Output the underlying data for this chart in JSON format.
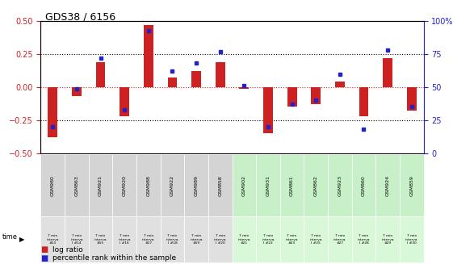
{
  "title": "GDS38 / 6156",
  "samples": [
    "GSM980",
    "GSM863",
    "GSM921",
    "GSM920",
    "GSM988",
    "GSM922",
    "GSM989",
    "GSM858",
    "GSM902",
    "GSM931",
    "GSM861",
    "GSM862",
    "GSM923",
    "GSM860",
    "GSM924",
    "GSM859"
  ],
  "intervals": [
    "#13",
    "I #14",
    "#15",
    "I #16",
    "#17",
    "I #18",
    "#19",
    "I #20",
    "#21",
    "I #22",
    "#23",
    "I #25",
    "#27",
    "I #28",
    "#29",
    "I #30"
  ],
  "log_ratio": [
    -0.38,
    -0.07,
    0.19,
    -0.22,
    0.47,
    0.07,
    0.12,
    0.19,
    -0.01,
    -0.35,
    -0.15,
    -0.13,
    0.04,
    -0.22,
    0.22,
    -0.18
  ],
  "percentile": [
    20,
    49,
    72,
    33,
    93,
    62,
    68,
    77,
    51,
    20,
    37,
    40,
    60,
    18,
    78,
    35
  ],
  "ylim": [
    -0.5,
    0.5
  ],
  "y2lim": [
    0,
    100
  ],
  "yticks": [
    -0.5,
    -0.25,
    0.0,
    0.25,
    0.5
  ],
  "y2ticks": [
    0,
    25,
    50,
    75,
    100
  ],
  "hlines": [
    -0.25,
    0.0,
    0.25
  ],
  "bar_color": "#cc2222",
  "dot_color": "#2222cc",
  "cell_bg_gray": "#d4d4d4",
  "cell_bg_green": "#c8f0c8",
  "interval_bg_gray": "#e0e0e0",
  "interval_bg_green": "#d8f8d8",
  "legend_lr": "log ratio",
  "legend_pr": "percentile rank within the sample"
}
